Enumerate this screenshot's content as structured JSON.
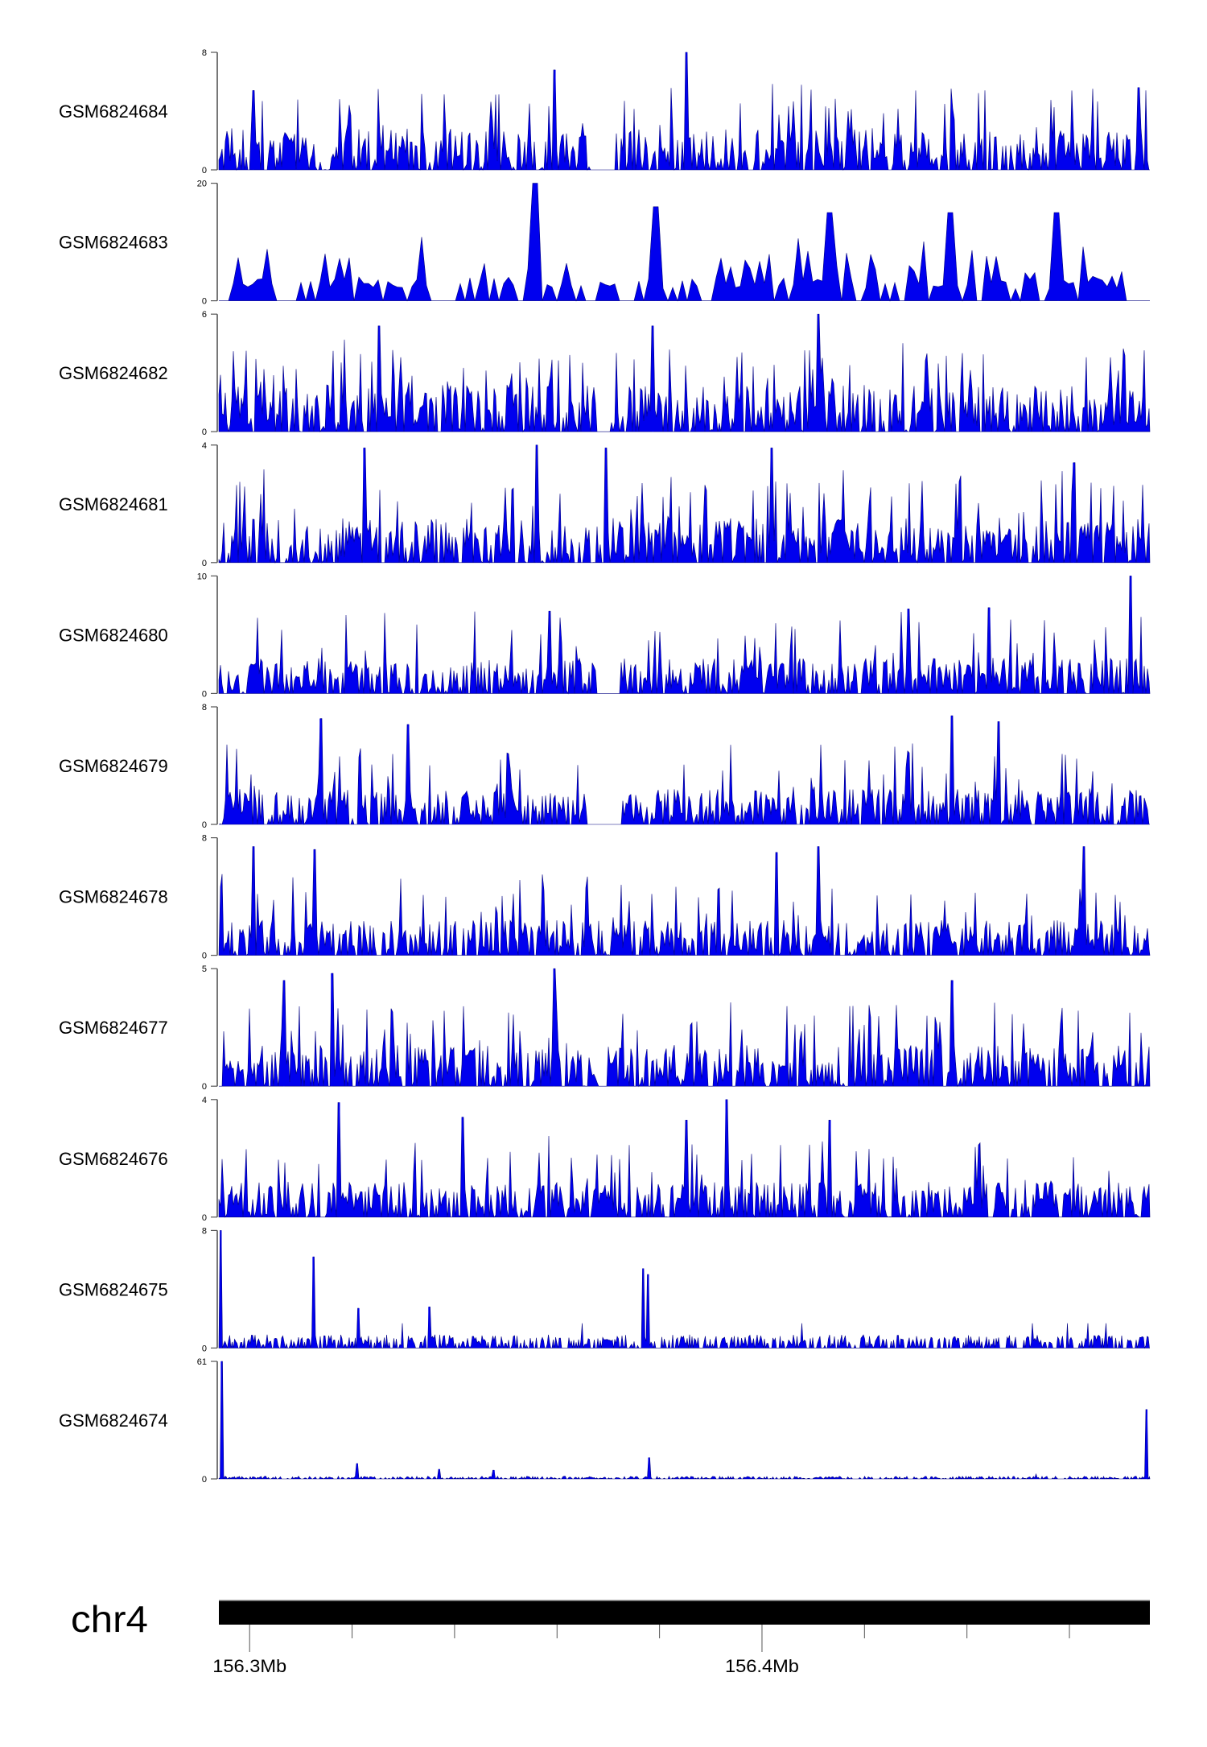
{
  "chart_data": {
    "type": "area",
    "title": "",
    "xlabel": "",
    "ylabel": "",
    "chromosome": "chr4",
    "xlim_mb": [
      156.294,
      156.4757
    ],
    "x_ticks_mb": [
      156.3,
      156.32,
      156.34,
      156.36,
      156.38,
      156.4,
      156.42,
      156.44,
      156.46
    ],
    "x_tick_labels": [
      {
        "mb": 156.3,
        "label": "156.3Mb"
      },
      {
        "mb": 156.4,
        "label": "156.4Mb"
      }
    ],
    "fill_color": "#0000ee",
    "line_color": "#000080",
    "tracks": [
      {
        "name": "GSM6824684",
        "ylim": [
          0,
          8
        ],
        "ymin_label": "0",
        "ymax_label": "8",
        "background": 0.35,
        "style": "dense",
        "gaps": [
          [
            156.3665,
            156.3715
          ]
        ],
        "peaks": [
          [
            156.3853,
            8
          ],
          [
            156.3596,
            6.8
          ],
          [
            156.4735,
            5.6
          ],
          [
            156.3007,
            5.4
          ]
        ]
      },
      {
        "name": "GSM6824683",
        "ylim": [
          0,
          20
        ],
        "ymin_label": "0",
        "ymax_label": "20",
        "background": 0.4,
        "style": "sparse",
        "gaps": [
          [
            156.294,
            156.2962
          ]
        ],
        "peaks": [
          [
            156.3561,
            20
          ],
          [
            156.3793,
            16
          ],
          [
            156.4365,
            15
          ],
          [
            156.4135,
            15
          ],
          [
            156.4578,
            15
          ]
        ]
      },
      {
        "name": "GSM6824682",
        "ylim": [
          0,
          6
        ],
        "ymin_label": "0",
        "ymax_label": "6",
        "background": 0.4,
        "style": "dense",
        "gaps": [
          [
            156.368,
            156.3705
          ]
        ],
        "peaks": [
          [
            156.411,
            6
          ],
          [
            156.3253,
            5.4
          ],
          [
            156.3787,
            5.4
          ]
        ]
      },
      {
        "name": "GSM6824681",
        "ylim": [
          0,
          4
        ],
        "ymin_label": "0",
        "ymax_label": "4",
        "background": 0.38,
        "style": "dense",
        "gaps": [],
        "peaks": [
          [
            156.356,
            4
          ],
          [
            156.3223,
            3.9
          ],
          [
            156.3695,
            3.9
          ],
          [
            156.4018,
            3.9
          ],
          [
            156.4608,
            3.4
          ]
        ]
      },
      {
        "name": "GSM6824680",
        "ylim": [
          0,
          10
        ],
        "ymin_label": "0",
        "ymax_label": "10",
        "background": 0.3,
        "style": "dense",
        "gaps": [
          [
            156.3675,
            156.3725
          ]
        ],
        "peaks": [
          [
            156.472,
            10
          ],
          [
            156.4444,
            7.3
          ],
          [
            156.4285,
            7.2
          ],
          [
            156.3585,
            7.0
          ]
        ]
      },
      {
        "name": "GSM6824679",
        "ylim": [
          0,
          8
        ],
        "ymin_label": "0",
        "ymax_label": "8",
        "background": 0.3,
        "style": "dense",
        "gaps": [
          [
            156.366,
            156.3725
          ]
        ],
        "peaks": [
          [
            156.437,
            7.4
          ],
          [
            156.3138,
            7.2
          ],
          [
            156.4462,
            7.0
          ],
          [
            156.331,
            6.8
          ]
        ]
      },
      {
        "name": "GSM6824678",
        "ylim": [
          0,
          8
        ],
        "ymin_label": "0",
        "ymax_label": "8",
        "background": 0.3,
        "style": "dense",
        "gaps": [],
        "peaks": [
          [
            156.411,
            7.4
          ],
          [
            156.3008,
            7.4
          ],
          [
            156.4628,
            7.4
          ],
          [
            156.3126,
            7.2
          ],
          [
            156.4029,
            7.0
          ]
        ]
      },
      {
        "name": "GSM6824677",
        "ylim": [
          0,
          5
        ],
        "ymin_label": "0",
        "ymax_label": "5",
        "background": 0.35,
        "style": "dense",
        "gaps": [
          [
            156.368,
            156.37
          ]
        ],
        "peaks": [
          [
            156.3594,
            5
          ],
          [
            156.316,
            4.8
          ],
          [
            156.4372,
            4.5
          ],
          [
            156.3067,
            4.5
          ]
        ]
      },
      {
        "name": "GSM6824676",
        "ylim": [
          0,
          4
        ],
        "ymin_label": "0",
        "ymax_label": "4",
        "background": 0.3,
        "style": "dense",
        "gaps": [],
        "peaks": [
          [
            156.393,
            4
          ],
          [
            156.3175,
            3.9
          ],
          [
            156.3415,
            3.4
          ],
          [
            156.3853,
            3.3
          ],
          [
            156.4133,
            3.3
          ]
        ]
      },
      {
        "name": "GSM6824675",
        "ylim": [
          0,
          8
        ],
        "ymin_label": "0",
        "ymax_label": "8",
        "background": 0.06,
        "style": "low",
        "gaps": [],
        "peaks": [
          [
            156.2944,
            8
          ],
          [
            156.3124,
            6.2
          ],
          [
            156.3768,
            5.4
          ],
          [
            156.3778,
            5.0
          ],
          [
            156.335,
            2.8
          ],
          [
            156.3213,
            2.7
          ]
        ]
      },
      {
        "name": "GSM6824674",
        "ylim": [
          0,
          61
        ],
        "ymin_label": "0",
        "ymax_label": "61",
        "background": 0.012,
        "style": "low",
        "gaps": [],
        "peaks": [
          [
            156.2945,
            61
          ],
          [
            156.4751,
            36
          ],
          [
            156.3779,
            11
          ],
          [
            156.321,
            8
          ],
          [
            156.337,
            5
          ],
          [
            156.3477,
            4.5
          ]
        ]
      }
    ]
  }
}
